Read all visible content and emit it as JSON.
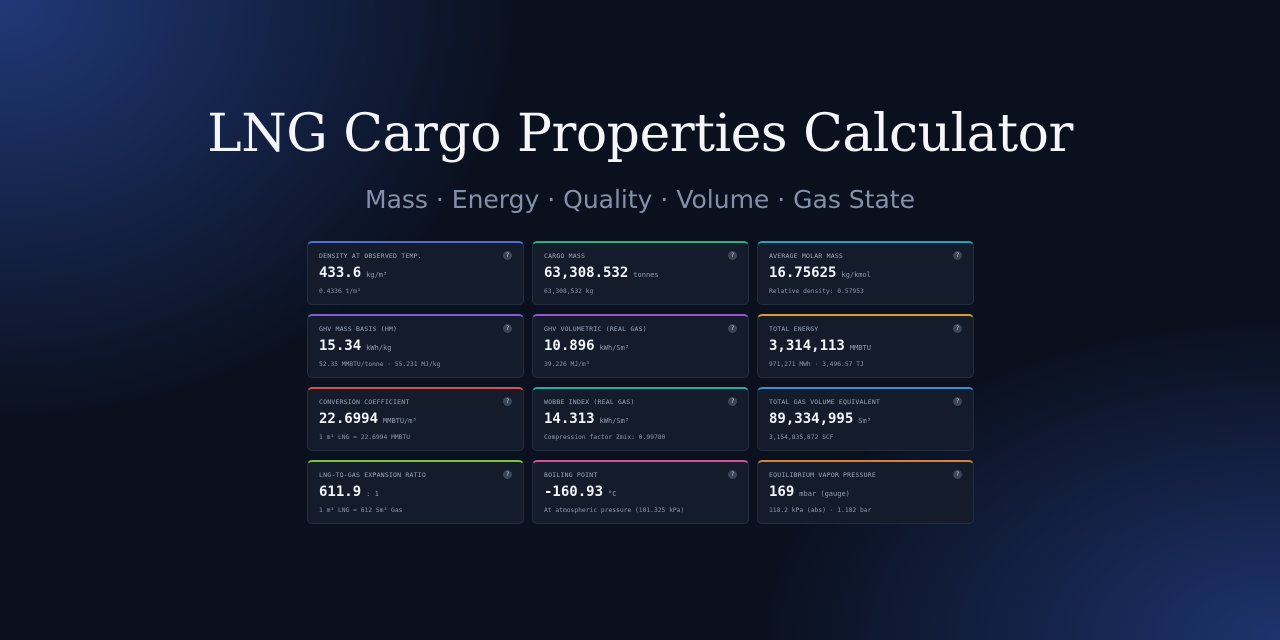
{
  "header": {
    "title": "LNG Cargo Properties Calculator",
    "subtitle": "Mass · Energy · Quality · Volume · Gas State"
  },
  "help_icon": "?",
  "cards": [
    {
      "label": "DENSITY AT OBSERVED TEMP.",
      "value": "433.6",
      "unit": "kg/m³",
      "sub": "0.4336 t/m³",
      "accent": "#4f6fd6"
    },
    {
      "label": "CARGO MASS",
      "value": "63,308.532",
      "unit": "tonnes",
      "sub": "63,308,532 kg",
      "accent": "#2fb07a"
    },
    {
      "label": "AVERAGE MOLAR MASS",
      "value": "16.75625",
      "unit": "kg/kmol",
      "sub": "Relative density: 0.57953",
      "accent": "#2aa0b8"
    },
    {
      "label": "GHV MASS BASIS (HM)",
      "value": "15.34",
      "unit": "kWh/kg",
      "sub": "52.35 MMBTU/tonne · 55.231 MJ/kg",
      "accent": "#7d5ed6"
    },
    {
      "label": "GHV VOLUMETRIC (REAL GAS)",
      "value": "10.896",
      "unit": "kWh/Sm³",
      "sub": "39.226 MJ/m³",
      "accent": "#9a55d0"
    },
    {
      "label": "TOTAL ENERGY",
      "value": "3,314,113",
      "unit": "MMBTU",
      "sub": "971,271 MWh · 3,496.57 TJ",
      "accent": "#d99a35"
    },
    {
      "label": "CONVERSION COEFFICIENT",
      "value": "22.6994",
      "unit": "MMBTU/m³",
      "sub": "1 m³ LNG = 22.6994 MMBTU",
      "accent": "#d9504f"
    },
    {
      "label": "WOBBE INDEX (REAL GAS)",
      "value": "14.313",
      "unit": "kWh/Sm³",
      "sub": "Compression factor Zmix: 0.99780",
      "accent": "#2aa89a"
    },
    {
      "label": "TOTAL GAS VOLUME EQUIVALENT",
      "value": "89,334,995",
      "unit": "Sm³",
      "sub": "3,154,835,872 SCF",
      "accent": "#3b8fd8"
    },
    {
      "label": "LNG-TO-GAS EXPANSION RATIO",
      "value": "611.9",
      "unit": ": 1",
      "sub": "1 m³ LNG = 612 Sm³ Gas",
      "accent": "#7cc43a"
    },
    {
      "label": "BOILING POINT",
      "value": "-160.93",
      "unit": "°C",
      "sub": "At atmospheric pressure (101.325 kPa)",
      "accent": "#d8508f"
    },
    {
      "label": "EQUILIBRIUM VAPOR PRESSURE",
      "value": "169",
      "unit": "mbar (gauge)",
      "sub": "118.2 kPa (abs) · 1.182 bar",
      "accent": "#d9803a"
    }
  ]
}
